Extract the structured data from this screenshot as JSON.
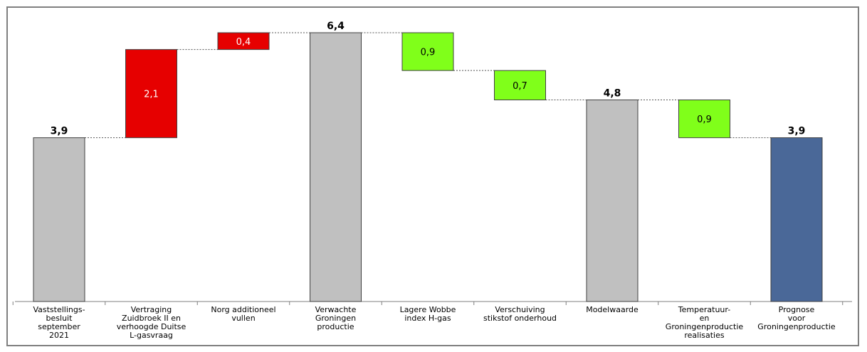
{
  "chart_data": {
    "type": "waterfall",
    "categories": [
      [
        "Vaststellings-",
        "besluit",
        "september",
        "2021"
      ],
      [
        "Vertraging",
        "Zuidbroek II en",
        "verhoogde Duitse",
        "L-gasvraag"
      ],
      [
        "Norg additioneel",
        "vullen"
      ],
      [
        "Verwachte",
        "Groningen",
        "productie"
      ],
      [
        "Lagere Wobbe",
        "index H-gas"
      ],
      [
        "Verschuiving",
        "stikstof onderhoud"
      ],
      [
        "Modelwaarde"
      ],
      [
        "Temperatuur-",
        "en",
        "Groningenproductie",
        "realisaties"
      ],
      [
        "Prognose",
        "voor",
        "Groningenproductie"
      ]
    ],
    "bars": [
      {
        "kind": "total",
        "base": 0,
        "top": 3.9,
        "label": "3,9",
        "color": "#c0c0c0"
      },
      {
        "kind": "increase",
        "base": 3.9,
        "top": 6.0,
        "label": "2,1",
        "color": "#e60000"
      },
      {
        "kind": "increase",
        "base": 6.0,
        "top": 6.4,
        "label": "0,4",
        "color": "#e60000"
      },
      {
        "kind": "total",
        "base": 0,
        "top": 6.4,
        "label": "6,4",
        "color": "#c0c0c0"
      },
      {
        "kind": "decrease",
        "base": 5.5,
        "top": 6.4,
        "label": "0,9",
        "color": "#80ff1a"
      },
      {
        "kind": "decrease",
        "base": 4.8,
        "top": 5.5,
        "label": "0,7",
        "color": "#80ff1a"
      },
      {
        "kind": "total",
        "base": 0,
        "top": 4.8,
        "label": "4,8",
        "color": "#c0c0c0"
      },
      {
        "kind": "decrease",
        "base": 3.9,
        "top": 4.8,
        "label": "0,9",
        "color": "#80ff1a"
      },
      {
        "kind": "total",
        "base": 0,
        "top": 3.9,
        "label": "3,9",
        "color": "#4a6898"
      }
    ],
    "ylim": [
      0,
      6.4
    ],
    "grid": false,
    "legend": false
  }
}
